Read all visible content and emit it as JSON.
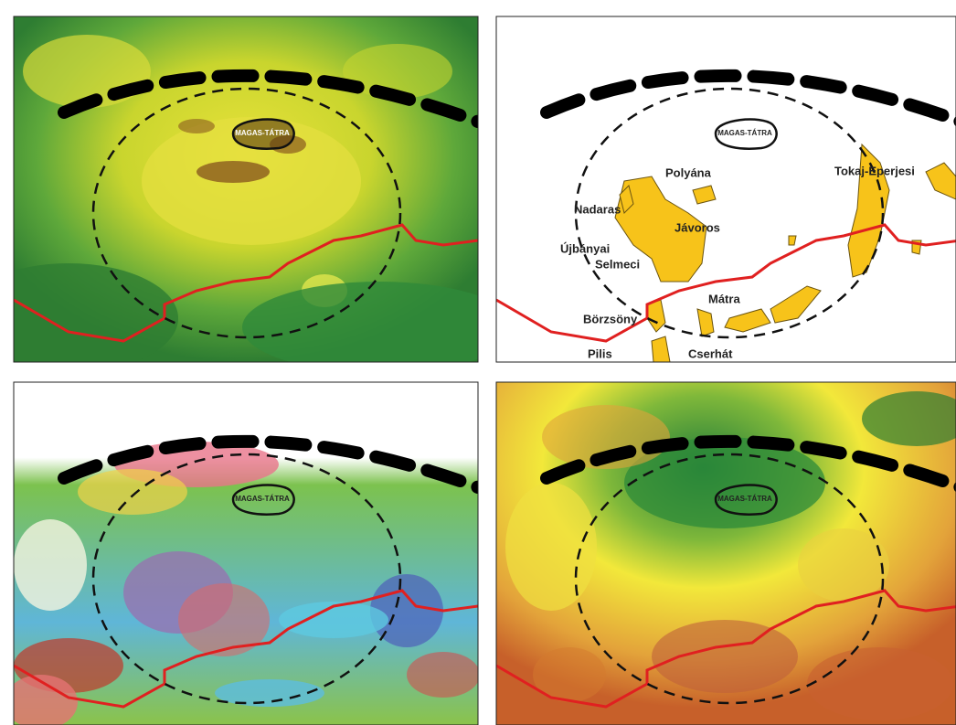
{
  "panels": [
    {
      "label": "MAGAS-TÁTRA"
    },
    {
      "label": "MAGAS-TÁTRA",
      "places": [
        "Polyána",
        "Nadaras",
        "Jávoros",
        "Újbányai",
        "Selmeci",
        "Tokaj-Eperjesi",
        "Mátra",
        "Börzsöny",
        "Pilis",
        "Cserhát"
      ]
    },
    {
      "label": "MAGAS-TÁTRA"
    },
    {
      "label": "MAGAS-TÁTRA"
    }
  ]
}
